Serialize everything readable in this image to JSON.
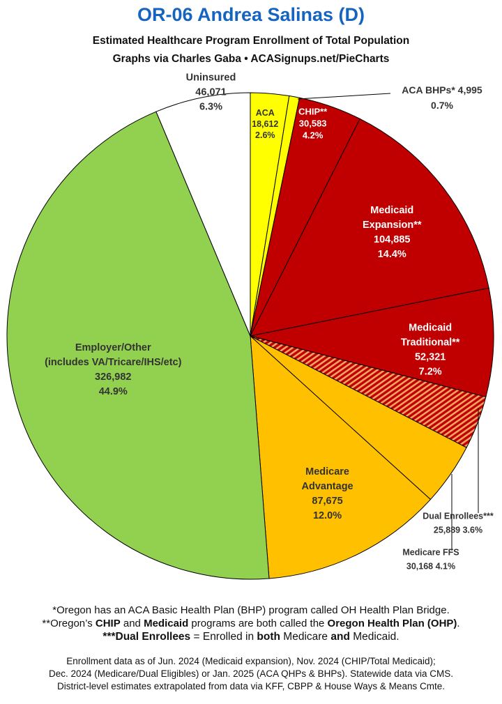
{
  "header": {
    "title": "OR-06 Andrea Salinas (D)",
    "subtitle1": "Estimated Healthcare Program Enrollment of Total Population",
    "subtitle2": "Graphs via Charles Gaba  •  ACASignups.net/PieCharts"
  },
  "chart_data": {
    "type": "pie",
    "title": "OR-06 Andrea Salinas (D)",
    "start": "12 o'clock, clockwise",
    "slices": [
      {
        "id": "aca",
        "lines": [
          "ACA",
          "18,612",
          "2.6%"
        ],
        "value": 18612,
        "percent": 2.6,
        "color": "#ffff00",
        "text_color": "#333333"
      },
      {
        "id": "aca-bhp",
        "lines": [
          "ACA BHPs* 4,995",
          "0.7%"
        ],
        "value": 4995,
        "percent": 0.7,
        "color": "#ffff00",
        "text_color": "#333333"
      },
      {
        "id": "chip",
        "lines": [
          "CHIP**",
          "30,583",
          "4.2%"
        ],
        "value": 30583,
        "percent": 4.2,
        "color": "#c00000",
        "text_color": "#ffffff"
      },
      {
        "id": "medicaid-expansion",
        "lines": [
          "Medicaid",
          "Expansion**",
          "104,885",
          "14.4%"
        ],
        "value": 104885,
        "percent": 14.4,
        "color": "#c00000",
        "text_color": "#ffffff"
      },
      {
        "id": "medicaid-traditional",
        "lines": [
          "Medicaid",
          "Traditional**",
          "52,321",
          "7.2%"
        ],
        "value": 52321,
        "percent": 7.2,
        "color": "#c00000",
        "text_color": "#ffffff"
      },
      {
        "id": "dual-enrollees",
        "lines": [
          "Dual Enrollees***",
          "25,889 3.6%"
        ],
        "value": 25889,
        "percent": 3.6,
        "color": "#c00000",
        "pattern": "hatched-orange",
        "text_color": "#333333"
      },
      {
        "id": "medicare-ffs",
        "lines": [
          "Medicare FFS",
          "30,168 4.1%"
        ],
        "value": 30168,
        "percent": 4.1,
        "color": "#ffc000",
        "text_color": "#333333"
      },
      {
        "id": "medicare-advantage",
        "lines": [
          "Medicare",
          "Advantage",
          "87,675",
          "12.0%"
        ],
        "value": 87675,
        "percent": 12.0,
        "color": "#ffc000",
        "text_color": "#333333"
      },
      {
        "id": "employer-other",
        "lines": [
          "Employer/Other",
          "(includes VA/Tricare/IHS/etc)",
          "326,982",
          "44.9%"
        ],
        "value": 326982,
        "percent": 44.9,
        "color": "#92d050",
        "text_color": "#333333"
      },
      {
        "id": "uninsured",
        "lines": [
          "Uninsured",
          "46,071",
          "6.3%"
        ],
        "value": 46071,
        "percent": 6.3,
        "color": "#ffffff",
        "text_color": "#333333"
      }
    ]
  },
  "footnotes": {
    "line1_a": "*Oregon has an ACA ",
    "line1_b": "Basic Health Plan",
    "line1_c": " (BHP) program called ",
    "line1_d": "OH Health Plan Bridge",
    "line1_e": ".",
    "line2_a": "**Oregon’s ",
    "line2_b": "CHIP",
    "line2_c": " and ",
    "line2_d": "Medicaid",
    "line2_e": " programs are both called the ",
    "line2_f": "Oregon Health Plan (OHP)",
    "line2_g": ".",
    "line3_a": "***Dual Enrollees",
    "line3_b": " = Enrolled in ",
    "line3_c": "both",
    "line3_d": " Medicare ",
    "line3_e": "and",
    "line3_f": " Medicaid.",
    "source1": "Enrollment data as of Jun. 2024 (Medicaid expansion), Nov. 2024 (CHIP/Total Medicaid);",
    "source2": "Dec. 2024 (Medicare/Dual Eligibles) or Jan. 2025 (ACA QHPs & BHPs). Statewide data via CMS.",
    "source3": "District-level estimates extrapolated from data via KFF, CBPP & House Ways & Means Cmte."
  }
}
